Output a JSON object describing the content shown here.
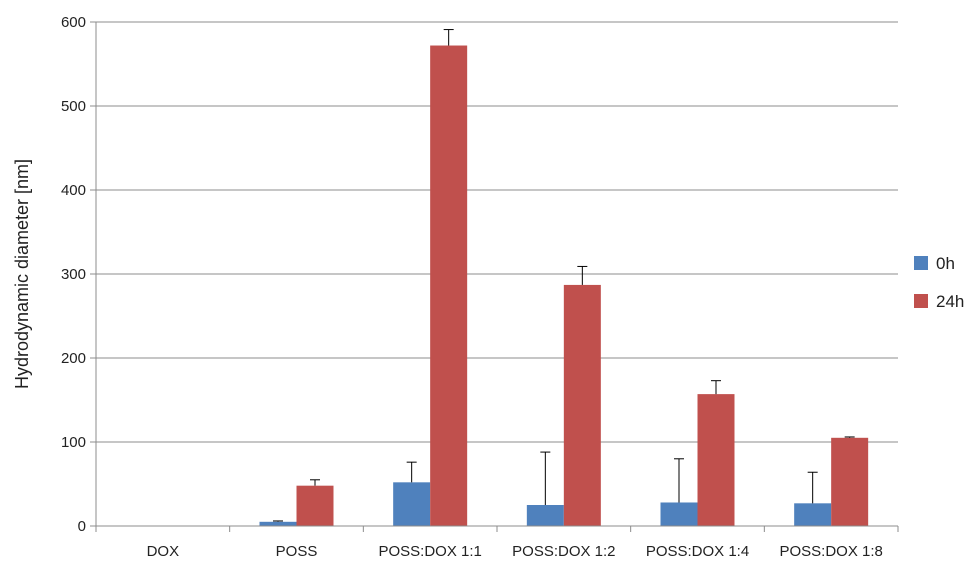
{
  "chart_data": {
    "type": "bar",
    "title": "",
    "xlabel": "",
    "ylabel": "Hydrodynamic diameter [nm]",
    "ylim": [
      0,
      600
    ],
    "yticks": [
      0,
      100,
      200,
      300,
      400,
      500,
      600
    ],
    "grid": true,
    "legend_position": "right",
    "categories": [
      "DOX",
      "POSS",
      "POSS:DOX 1:1",
      "POSS:DOX 1:2",
      "POSS:DOX 1:4",
      "POSS:DOX 1:8"
    ],
    "series": [
      {
        "name": "0h",
        "color": "#4F81BD",
        "values": [
          0,
          5,
          52,
          25,
          28,
          27
        ],
        "errors": [
          0,
          1,
          24,
          63,
          52,
          37
        ]
      },
      {
        "name": "24h",
        "color": "#C0504D",
        "values": [
          0,
          48,
          572,
          287,
          157,
          105
        ],
        "errors": [
          0,
          7,
          19,
          22,
          16,
          1
        ]
      }
    ]
  }
}
